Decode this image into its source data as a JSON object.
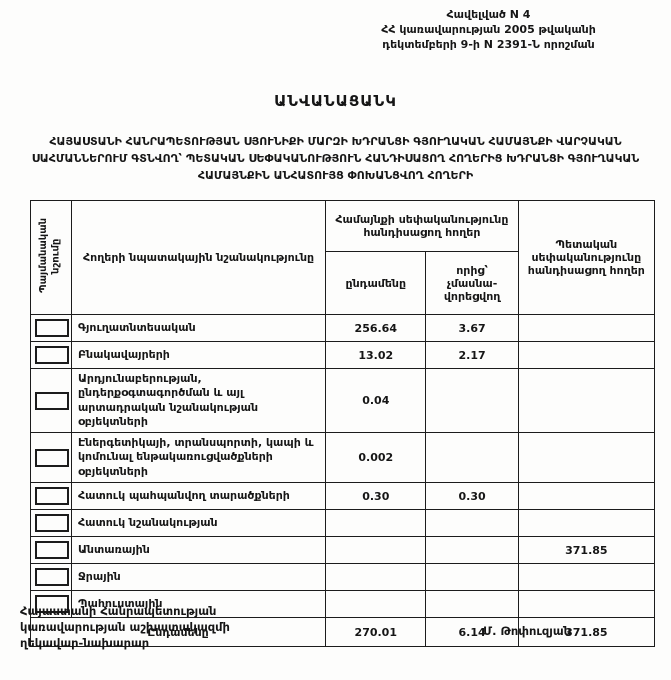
{
  "appendix_header": {
    "line1": "Հավելված N 4",
    "line2": "ՀՀ կառավարության 2005 թվականի",
    "line3": "դեկտեմբերի 9-ի N 2391-Ն որոշման"
  },
  "title": "ԱՆՎԱՆԱՑԱՆԿ",
  "subtitle": "ՀԱՅԱՍՏԱՆԻ ՀԱՆՐԱՊԵՏՈՒԹՅԱՆ ՍՅՈՒՆԻՔԻ ՄԱՐԶԻ ԽԴՐԱՆՑԻ ԳՅՈՒՂԱԿԱՆ ՀԱՄԱՅՆՔԻ ՎԱՐՉԱԿԱՆ ՍԱՀՄԱՆՆԵՐՈՒՄ ԳՏՆՎՈՂ՝ ՊԵՏԱԿԱՆ ՍԵՓԱԿԱՆՈՒԹՅՈՒՆ ՀԱՆԴԻՍԱՑՈՂ ՀՈՂԵՐԻՑ ԽԴՐԱՆՑԻ ԳՅՈՒՂԱԿԱՆ ՀԱՄԱՅՆՔԻՆ ԱՆՀԱՏՈՒՅՑ ՓՈԽԱՆՑՎՈՂ ՀՈՂԵՐԻ",
  "table": {
    "headers": {
      "symbol": "Պայմանական նշումը",
      "purpose": "Հողերի  նպատակային նշանակությունը",
      "community_group": "Համայնքի սեփականությունը հանդիսացող հողեր",
      "community_total": "ընդամենը",
      "community_nonprivatizable": "որից՝ չմասնա­վորեցվող",
      "state": "Պետական սեփականությունը հանդիսացող հողեր"
    },
    "rows": [
      {
        "label": "Գյուղատնտեսական",
        "community_total": "256.64",
        "community_nonprivatizable": "3.67",
        "state": ""
      },
      {
        "label": "Բնակավայրերի",
        "community_total": "13.02",
        "community_nonprivatizable": "2.17",
        "state": ""
      },
      {
        "label": "Արդյունաբերության, ընդերքօգտագործման և այլ արտադրական նշանակության օբյեկտների",
        "community_total": "0.04",
        "community_nonprivatizable": "",
        "state": ""
      },
      {
        "label": "Էներգետիկայի, տրանսպորտի, կապի և կոմունալ ենթակառուցվածքների օբյեկտների",
        "community_total": "0.002",
        "community_nonprivatizable": "",
        "state": ""
      },
      {
        "label": "Հատուկ պահպանվող տարածքների",
        "community_total": "0.30",
        "community_nonprivatizable": "0.30",
        "state": ""
      },
      {
        "label": "Հատուկ նշանակության",
        "community_total": "",
        "community_nonprivatizable": "",
        "state": ""
      },
      {
        "label": "Անտառային",
        "community_total": "",
        "community_nonprivatizable": "",
        "state": "371.85"
      },
      {
        "label": "Ջրային",
        "community_total": "",
        "community_nonprivatizable": "",
        "state": ""
      },
      {
        "label": "Պահուստային",
        "community_total": "",
        "community_nonprivatizable": "",
        "state": ""
      }
    ],
    "total_row": {
      "label": "Ընդամենը",
      "community_total": "270.01",
      "community_nonprivatizable": "6.14",
      "state": "371.85"
    }
  },
  "footer": {
    "signatory_lines": [
      "Հայաստանի Հանրապետության",
      "կառավարության աշխատակազմի",
      "ղեկավար-նախարար"
    ],
    "signature_name": "Մ. Թոփուզյան"
  }
}
